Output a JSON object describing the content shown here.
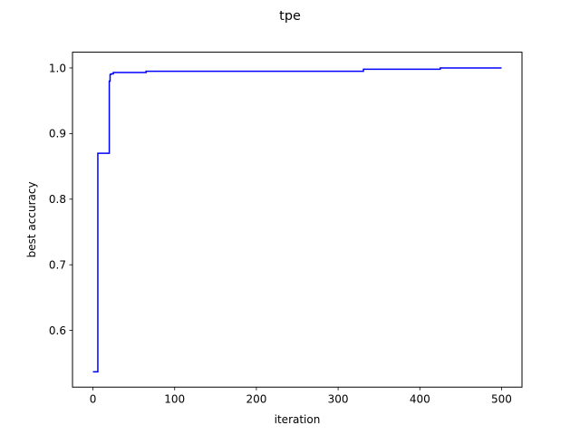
{
  "chart_data": {
    "type": "line",
    "title": "tpe",
    "xlabel": "iteration",
    "ylabel": "best accuracy",
    "xlim": [
      -25,
      525
    ],
    "ylim": [
      0.5135,
      1.024
    ],
    "xticks": [
      0,
      100,
      200,
      300,
      400,
      500
    ],
    "yticks": [
      0.6,
      0.7,
      0.8,
      0.9,
      1.0
    ],
    "xtick_labels": [
      "0",
      "100",
      "200",
      "300",
      "400",
      "500"
    ],
    "ytick_labels": [
      "0.6",
      "0.7",
      "0.8",
      "0.9",
      "1.0"
    ],
    "grid": false,
    "step": true,
    "series": [
      {
        "color": "#0000ff",
        "x": [
          0,
          6,
          20,
          21,
          22,
          25,
          65,
          331,
          425,
          500
        ],
        "y": [
          0.537,
          0.87,
          0.98,
          0.99,
          0.991,
          0.993,
          0.995,
          0.998,
          1.0,
          1.0
        ]
      }
    ]
  }
}
